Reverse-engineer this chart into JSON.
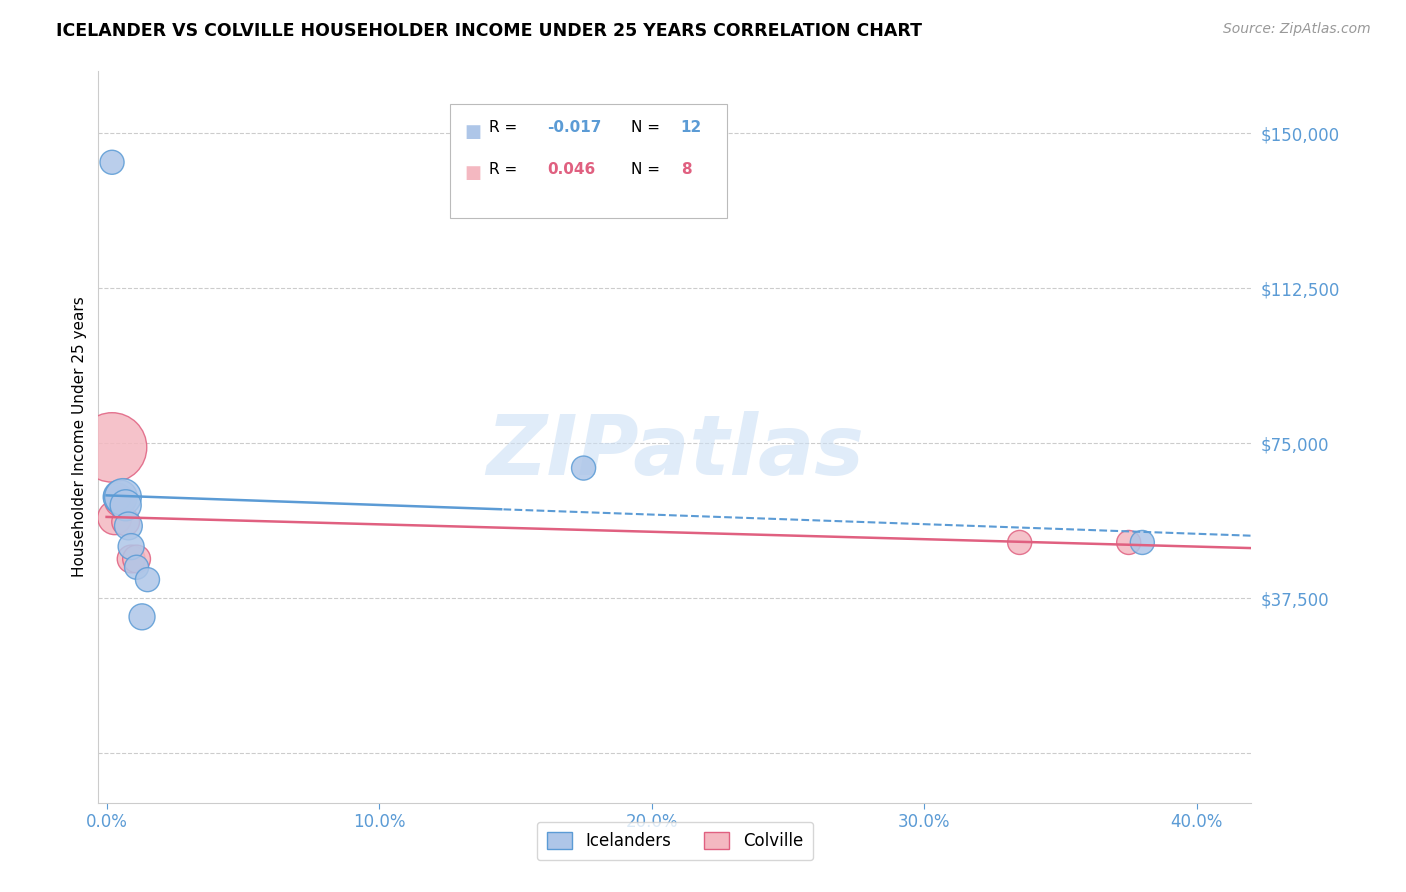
{
  "title": "ICELANDER VS COLVILLE HOUSEHOLDER INCOME UNDER 25 YEARS CORRELATION CHART",
  "source": "Source: ZipAtlas.com",
  "ylabel": "Householder Income Under 25 years",
  "icelander_color": "#aec6e8",
  "icelander_edge": "#5b9bd5",
  "colville_color": "#f4b8c1",
  "colville_edge": "#e06080",
  "trend_ice_color": "#5b9bd5",
  "trend_col_color": "#e06080",
  "legend_ice_R": "-0.017",
  "legend_ice_N": "12",
  "legend_col_R": "0.046",
  "legend_col_N": "8",
  "icelander_x": [
    0.002,
    0.004,
    0.005,
    0.006,
    0.007,
    0.008,
    0.009,
    0.011,
    0.013,
    0.015,
    0.175,
    0.38
  ],
  "icelander_y": [
    143000,
    62000,
    62000,
    62000,
    60000,
    55000,
    50000,
    45000,
    33000,
    42000,
    69000,
    51000
  ],
  "icelander_size": [
    300,
    400,
    600,
    700,
    500,
    400,
    350,
    300,
    350,
    300,
    300,
    300
  ],
  "colville_x": [
    0.002,
    0.003,
    0.005,
    0.007,
    0.009,
    0.011,
    0.335,
    0.375
  ],
  "colville_y": [
    74000,
    57000,
    61000,
    56000,
    47000,
    47000,
    51000,
    51000
  ],
  "colville_size": [
    2500,
    600,
    500,
    400,
    400,
    400,
    300,
    300
  ],
  "xlim": [
    -0.003,
    0.42
  ],
  "ylim": [
    -12000,
    165000
  ],
  "xticks": [
    0.0,
    0.1,
    0.2,
    0.3,
    0.4
  ],
  "xticklabels": [
    "0.0%",
    "10.0%",
    "20.0%",
    "30.0%",
    "40.0%"
  ],
  "yticks": [
    0,
    37500,
    75000,
    112500,
    150000
  ],
  "yticklabels_right": [
    "",
    "$37,500",
    "$75,000",
    "$112,500",
    "$150,000"
  ],
  "trend_ice_solid_end": 0.145,
  "trend_ice_dash_start": 0.145,
  "watermark_text": "ZIPatlas",
  "watermark_color": "#cce0f5",
  "watermark_alpha": 0.6,
  "axis_color": "#cccccc",
  "tick_label_color": "#5b9bd5",
  "right_ytick_color": "#5b9bd5"
}
